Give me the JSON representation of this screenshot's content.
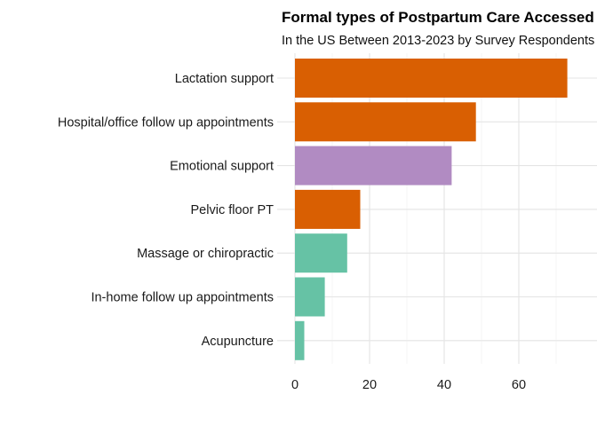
{
  "chart_data": {
    "type": "bar",
    "orientation": "horizontal",
    "title": "Formal types of Postpartum Care Accessed",
    "subtitle": "In the US Between 2013-2023 by Survey Respondents",
    "xlabel": "",
    "ylabel": "",
    "xlim": [
      0,
      75
    ],
    "xticks": [
      0,
      20,
      40,
      60
    ],
    "grid": true,
    "legend": "none",
    "categories": [
      "Lactation support",
      "Hospital/office follow up appointments",
      "Emotional support",
      "Pelvic floor PT",
      "Massage or chiropractic",
      "In-home follow up appointments",
      "Acupuncture"
    ],
    "values": [
      73,
      48.5,
      42,
      17.5,
      14,
      8,
      2.5
    ],
    "colors": [
      "#d95f02",
      "#d95f02",
      "#b18bc2",
      "#d95f02",
      "#66c2a5",
      "#66c2a5",
      "#66c2a5"
    ]
  }
}
